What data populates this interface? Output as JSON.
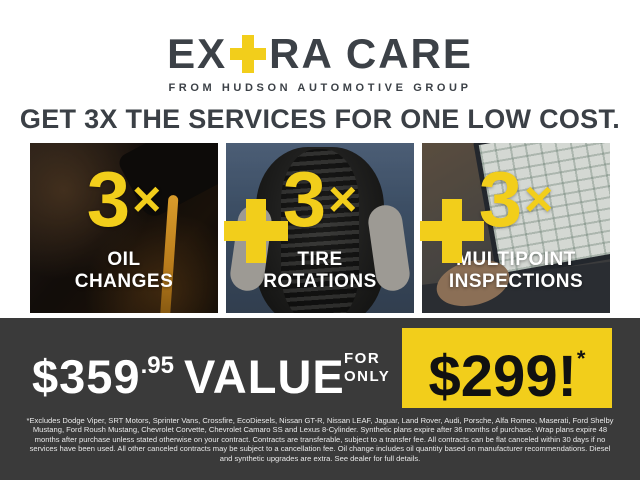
{
  "brand": {
    "logo_prefix": "EX",
    "logo_suffix": "RA CARE",
    "tagline": "FROM HUDSON AUTOMOTIVE GROUP"
  },
  "headline": "GET 3X THE SERVICES FOR ONE LOW COST.",
  "services": [
    {
      "multiplier_number": "3",
      "multiplier_times": "×",
      "label_line1": "OIL",
      "label_line2": "CHANGES",
      "photo": "oil-pouring-photo"
    },
    {
      "multiplier_number": "3",
      "multiplier_times": "×",
      "label_line1": "TIRE",
      "label_line2": "ROTATIONS",
      "photo": "tire-held-photo"
    },
    {
      "multiplier_number": "3",
      "multiplier_times": "×",
      "label_line1": "MULTIPOINT",
      "label_line2": "INSPECTIONS",
      "photo": "laptop-inspection-photo"
    }
  ],
  "offer": {
    "value_dollars": "$359",
    "value_cents": ".95",
    "value_label": "VALUE",
    "for_word": "FOR",
    "only_word": "ONLY",
    "sale_price": "$299!",
    "sale_asterisk": "*"
  },
  "disclaimer": "*Excludes Dodge Viper, SRT Motors, Sprinter Vans, Crossfire, EcoDiesels, Nissan GT-R, Nissan LEAF, Jaguar, Land Rover, Audi, Porsche, Alfa Romeo, Maserati, Ford Shelby Mustang, Ford Roush Mustang, Chevrolet Corvette, Chevrolet Camaro SS and Lexus 8-Cylinder. Synthetic plans expire after 36 months of purchase. Wrap plans expire 48 months after purchase unless stated otherwise on your contract. Contracts are transferable, subject to a transfer fee. All contracts can be flat canceled within 30 days if no services have been used. All other canceled contracts may be subject to a cancellation fee. Oil change includes oil quantity based on manufacturer recommendations. Diesel and synthetic upgrades are extra. See dealer for full details.",
  "colors": {
    "accent_yellow": "#F2CE1B",
    "charcoal_bar": "#3A3A3A",
    "dark_text": "#3C4147",
    "white": "#FFFFFF"
  }
}
